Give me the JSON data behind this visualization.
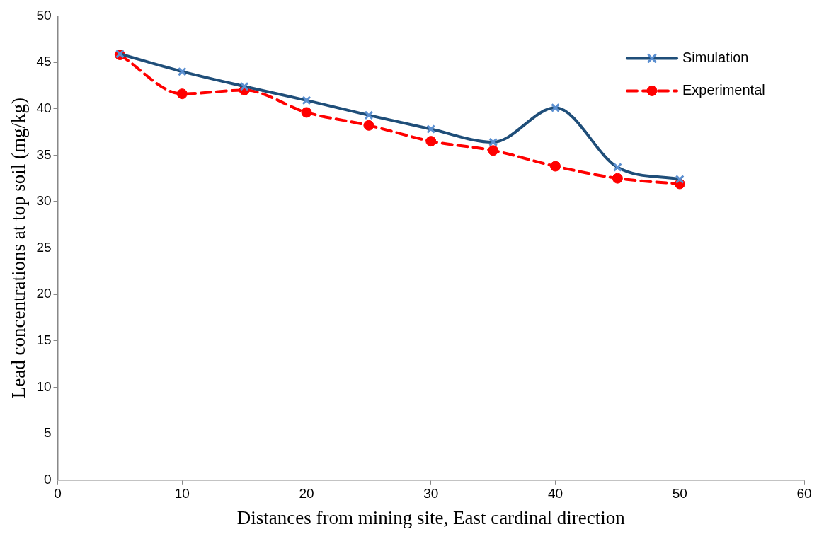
{
  "chart_data": {
    "type": "line",
    "xlabel": "Distances from mining site, East cardinal direction",
    "ylabel": "Lead concentrations at top soil (mg/kg)",
    "x": [
      5,
      10,
      15,
      20,
      25,
      30,
      35,
      40,
      45,
      50
    ],
    "series": [
      {
        "name": "Simulation",
        "color": "#1f4e79",
        "marker": "cross",
        "line_style": "solid",
        "values": [
          45.9,
          44.0,
          42.4,
          40.9,
          39.3,
          37.8,
          36.4,
          40.1,
          33.7,
          32.4
        ]
      },
      {
        "name": "Experimental",
        "color": "#ff0000",
        "marker": "circle",
        "line_style": "dashed",
        "values": [
          45.8,
          41.6,
          42.0,
          39.6,
          38.2,
          36.5,
          35.5,
          33.8,
          32.5,
          31.9
        ]
      }
    ],
    "xlim": [
      0,
      60
    ],
    "xticks": [
      0,
      10,
      20,
      30,
      40,
      50,
      60
    ],
    "ylim": [
      0,
      50
    ],
    "yticks": [
      0,
      5,
      10,
      15,
      20,
      25,
      30,
      35,
      40,
      45,
      50
    ],
    "grid": false,
    "legend": "top right"
  }
}
